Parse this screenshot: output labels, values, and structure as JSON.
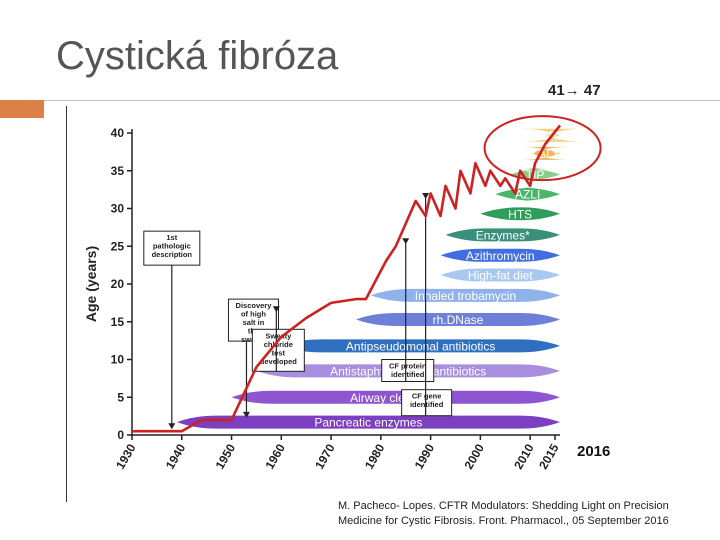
{
  "slide": {
    "title": "Cystická fibróza",
    "survival_note": "41→ 47",
    "year_note": "2016",
    "citation_line1": "M. Pacheco- Lopes. CFTR Modulators: Shedding Light on Precision",
    "citation_line2": "Medicine for Cystic Fibrosis. Front. Pharmacol., 05 September 2016"
  },
  "colors": {
    "title_accent": "#dd8047",
    "survival_line": "#cc2222",
    "highlight_circle": "#cc2222"
  },
  "chart_data": {
    "type": "line",
    "ylabel": "Age (years)",
    "xlabel": "",
    "ylim": [
      0,
      40
    ],
    "xlim": [
      1930,
      2016
    ],
    "yticks": [
      "0",
      "5",
      "10",
      "15",
      "20",
      "25",
      "30",
      "35",
      "40"
    ],
    "xticks": [
      "1930",
      "1940",
      "1950",
      "1960",
      "1970",
      "1980",
      "1990",
      "2000",
      "2010",
      "2015"
    ],
    "grid": false,
    "series": [
      {
        "x": [
          1930,
          1938,
          1940,
          1944,
          1948,
          1950,
          1955,
          1960,
          1965,
          1970,
          1975,
          1977,
          1979,
          1981,
          1983,
          1985,
          1987,
          1989,
          1990,
          1992,
          1993,
          1995,
          1996,
          1998,
          1999,
          2001,
          2002,
          2004,
          2005,
          2007,
          2008,
          2010,
          2011,
          2013,
          2016
        ],
        "y": [
          0.5,
          0.5,
          0.5,
          2,
          2,
          2,
          9,
          13,
          15.5,
          17.5,
          18,
          18,
          20.5,
          23,
          25,
          28,
          31,
          29,
          32,
          29,
          33,
          30,
          35,
          32,
          36,
          33,
          35,
          33,
          34,
          32,
          35,
          33,
          36,
          38.5,
          41
        ]
      }
    ],
    "milestones": [
      {
        "label": "1st pathologic description",
        "year": 1938,
        "age": 0.5
      },
      {
        "label": "Discovery of high salt in the sweaty",
        "year": 1953,
        "age": 2
      },
      {
        "label": "Sweaty chloride test developed",
        "year": 1959,
        "age": 16
      },
      {
        "label": "CF protein identified",
        "year": 1985,
        "age": 25
      },
      {
        "label": "CF gene identified",
        "year": 1989,
        "age": 31
      }
    ],
    "therapies": [
      {
        "label": "Pancreatic enzymes",
        "start": 1939,
        "end": 2016,
        "age": 1.7,
        "color": "#7b3fc0",
        "text_color": "#ffffff"
      },
      {
        "label": "Airway clearance",
        "start": 1950,
        "end": 2016,
        "age": 5,
        "color": "#8f55d0",
        "text_color": "#ffffff"
      },
      {
        "label": "Antistaphylococcal antibiotics",
        "start": 1955,
        "end": 2016,
        "age": 8.5,
        "color": "#a98ee0",
        "text_color": "#ffffff"
      },
      {
        "label": "Antipseudomonal antibiotics",
        "start": 1960,
        "end": 2016,
        "age": 11.8,
        "color": "#2f6fbf",
        "text_color": "#ffffff"
      },
      {
        "label": "rh.DNase",
        "start": 1975,
        "end": 2016,
        "age": 15.3,
        "color": "#6e7fd8",
        "text_color": "#ffffff"
      },
      {
        "label": "Inhaled trobamycin",
        "start": 1978,
        "end": 2016,
        "age": 18.5,
        "color": "#8fb2ea",
        "text_color": "#ffffff"
      },
      {
        "label": "High-fat diet",
        "start": 1992,
        "end": 2016,
        "age": 21.2,
        "color": "#a8c8f0",
        "text_color": "#ffffff"
      },
      {
        "label": "Azithromycin",
        "start": 1992,
        "end": 2016,
        "age": 23.8,
        "color": "#3f6fe0",
        "text_color": "#ffffff"
      },
      {
        "label": "Enzymes*",
        "start": 1993,
        "end": 2016,
        "age": 26.5,
        "color": "#3a8f7a",
        "text_color": "#ffffff"
      },
      {
        "label": "HTS",
        "start": 2000,
        "end": 2016,
        "age": 29.3,
        "color": "#2f9e5a",
        "text_color": "#ffffff"
      },
      {
        "label": "AZLI",
        "start": 2003,
        "end": 2016,
        "age": 31.9,
        "color": "#4bb56a",
        "text_color": "#ffffff"
      },
      {
        "label": "TIP",
        "start": 2006,
        "end": 2016,
        "age": 34.5,
        "color": "#86cf8a",
        "text_color": "#ffffff"
      },
      {
        "label": "KALY",
        "start": 2010,
        "end": 2016,
        "age": 37.3,
        "color": "#f1b35e",
        "text_color": "#ffffff"
      },
      {
        "label": "ORK",
        "start": 2013,
        "end": 2016,
        "age": 39.7,
        "color": "#f3cf86",
        "text_color": "#ffffff"
      }
    ]
  }
}
